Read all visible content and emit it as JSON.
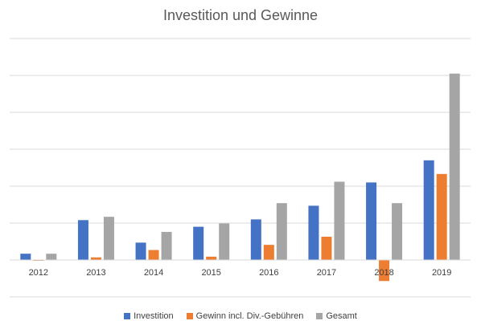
{
  "chart_data": {
    "type": "bar",
    "title": "Investition und Gewinne",
    "categories": [
      "2012",
      "2013",
      "2014",
      "2015",
      "2016",
      "2017",
      "2018",
      "2019"
    ],
    "series": [
      {
        "name": "Investition",
        "color": "#4472C4",
        "values": [
          17,
          108,
          47,
          90,
          110,
          147,
          210,
          270
        ]
      },
      {
        "name": "Gewinn incl. Div.-Gebühren",
        "color": "#ED7D31",
        "values": [
          -2,
          7,
          27,
          9,
          41,
          63,
          -57,
          233
        ]
      },
      {
        "name": "Gesamt",
        "color": "#A5A5A5",
        "values": [
          17,
          117,
          76,
          99,
          154,
          212,
          154,
          505
        ]
      }
    ],
    "ylim": [
      -100,
      600
    ],
    "grid": true,
    "legend": "bottom"
  }
}
